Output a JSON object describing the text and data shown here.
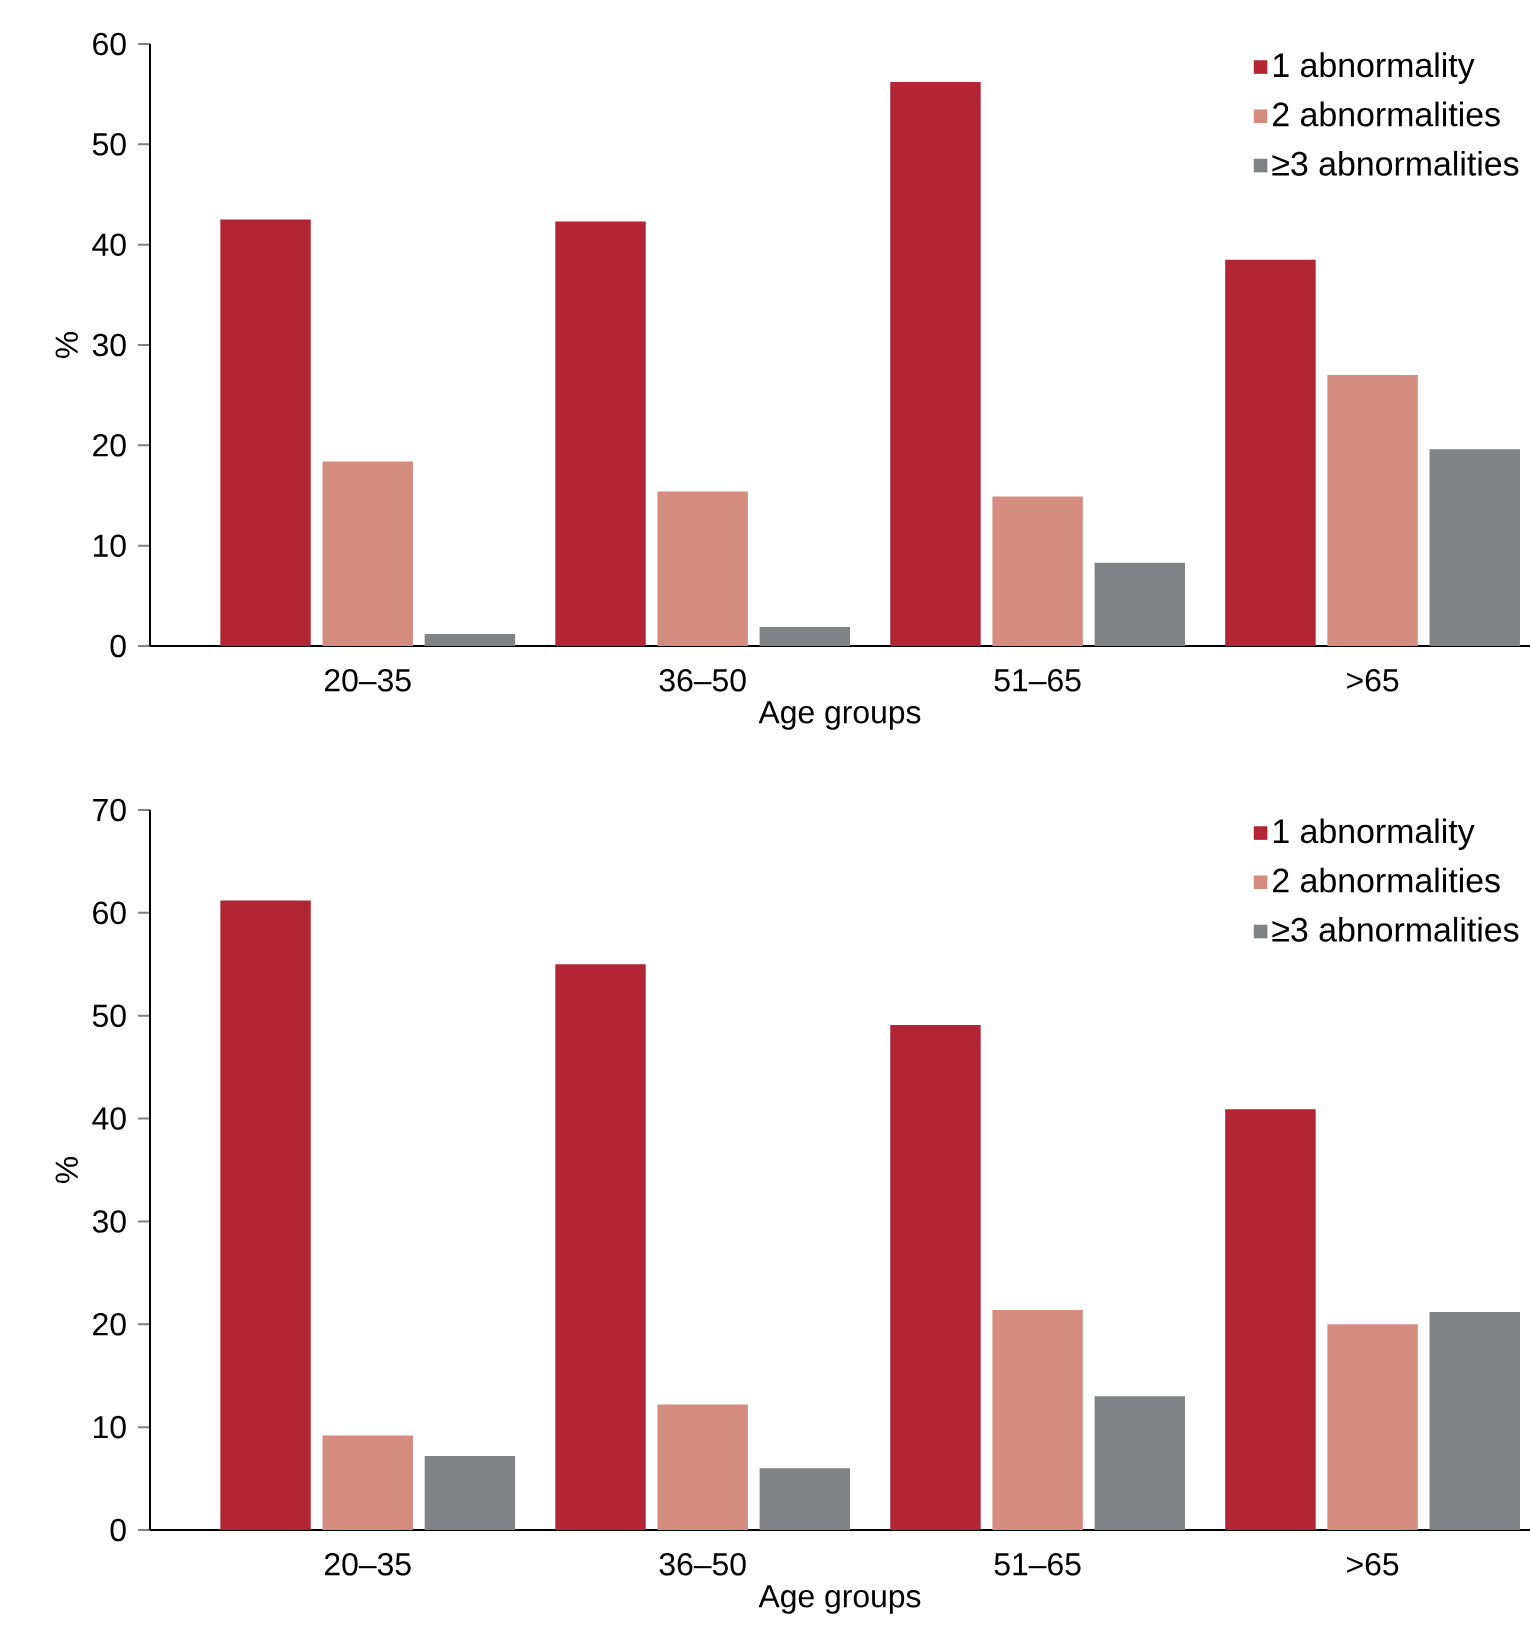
{
  "chart_data": [
    {
      "type": "bar",
      "xlabel": "Age groups",
      "ylabel": "%",
      "categories": [
        "20–35",
        "36–50",
        "51–65",
        ">65"
      ],
      "ylim": [
        0,
        60
      ],
      "yticks": [
        0,
        10,
        20,
        30,
        40,
        50,
        60
      ],
      "legend": "top right",
      "series": [
        {
          "name": "1 abnormality",
          "color": "#b22534",
          "values": [
            42.5,
            42.3,
            56.2,
            38.5
          ]
        },
        {
          "name": "2 abnormalities",
          "color": "#d38c7f",
          "values": [
            18.4,
            15.4,
            14.9,
            27.0
          ]
        },
        {
          "name": "≥3 abnormalities",
          "color": "#818286",
          "values": [
            1.2,
            1.9,
            8.3,
            19.6
          ]
        }
      ]
    },
    {
      "type": "bar",
      "xlabel": "Age groups",
      "ylabel": "%",
      "categories": [
        "20–35",
        "36–50",
        "51–65",
        ">65"
      ],
      "ylim": [
        0,
        70
      ],
      "yticks": [
        0,
        10,
        20,
        30,
        40,
        50,
        60,
        70
      ],
      "legend": "top right",
      "series": [
        {
          "name": "1 abnormality",
          "color": "#b22534",
          "values": [
            61.2,
            55.0,
            49.1,
            40.9
          ]
        },
        {
          "name": "2 abnormalities",
          "color": "#d38c7f",
          "values": [
            9.2,
            12.2,
            21.4,
            20.0
          ]
        },
        {
          "name": "≥3 abnormalities",
          "color": "#818286",
          "values": [
            7.2,
            6.0,
            13.0,
            21.2
          ]
        }
      ]
    }
  ]
}
